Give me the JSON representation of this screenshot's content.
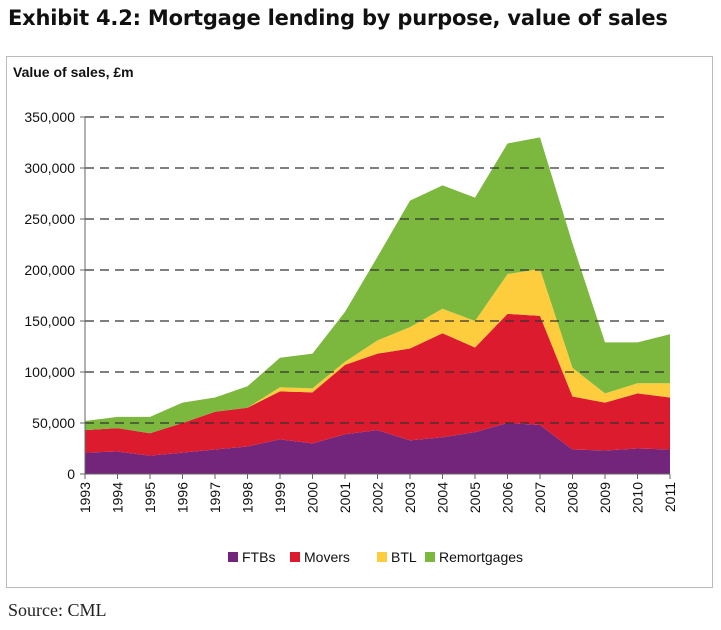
{
  "title": "Exhibit 4.2: Mortgage lending by purpose, value of sales",
  "source": "Source: CML",
  "chart_data": {
    "type": "area",
    "stacked": true,
    "title": "Exhibit 4.2: Mortgage lending by purpose, value of sales",
    "ylabel": "Value of sales, £m",
    "xlabel": "",
    "ylim": [
      0,
      350000
    ],
    "yticks": [
      0,
      50000,
      100000,
      150000,
      200000,
      250000,
      300000,
      350000
    ],
    "ytick_labels": [
      "0",
      "50,000",
      "100,000",
      "150,000",
      "200,000",
      "250,000",
      "300,000",
      "350,000"
    ],
    "grid": "horizontal dashed",
    "legend_position": "bottom",
    "x": [
      "1993",
      "1994",
      "1995",
      "1996",
      "1997",
      "1998",
      "1999",
      "2000",
      "2001",
      "2002",
      "2003",
      "2004",
      "2005",
      "2006",
      "2007",
      "2008",
      "2009",
      "2010",
      "2011"
    ],
    "series": [
      {
        "name": "FTBs",
        "color": "#72257a",
        "values": [
          21000,
          22000,
          18000,
          21000,
          24000,
          27000,
          34000,
          30000,
          39000,
          43000,
          33000,
          36000,
          41000,
          50000,
          48000,
          24000,
          23000,
          25000,
          24000
        ]
      },
      {
        "name": "Movers",
        "color": "#dc1c2e",
        "values": [
          22000,
          23000,
          22000,
          29000,
          37000,
          38000,
          47000,
          50000,
          68000,
          75000,
          90000,
          102000,
          83000,
          107000,
          107000,
          52000,
          47000,
          54000,
          51000
        ]
      },
      {
        "name": "BTL",
        "color": "#fdcd3e",
        "values": [
          0,
          0,
          0,
          0,
          0,
          0,
          4000,
          4000,
          3000,
          13000,
          21000,
          24000,
          26000,
          39000,
          46000,
          28000,
          9000,
          10000,
          14000
        ]
      },
      {
        "name": "Remortgages",
        "color": "#7cb83e",
        "values": [
          9000,
          11000,
          16000,
          20000,
          14000,
          21000,
          29000,
          34000,
          49000,
          82000,
          124000,
          121000,
          121000,
          128000,
          129000,
          122000,
          50000,
          40000,
          48000
        ]
      }
    ]
  }
}
